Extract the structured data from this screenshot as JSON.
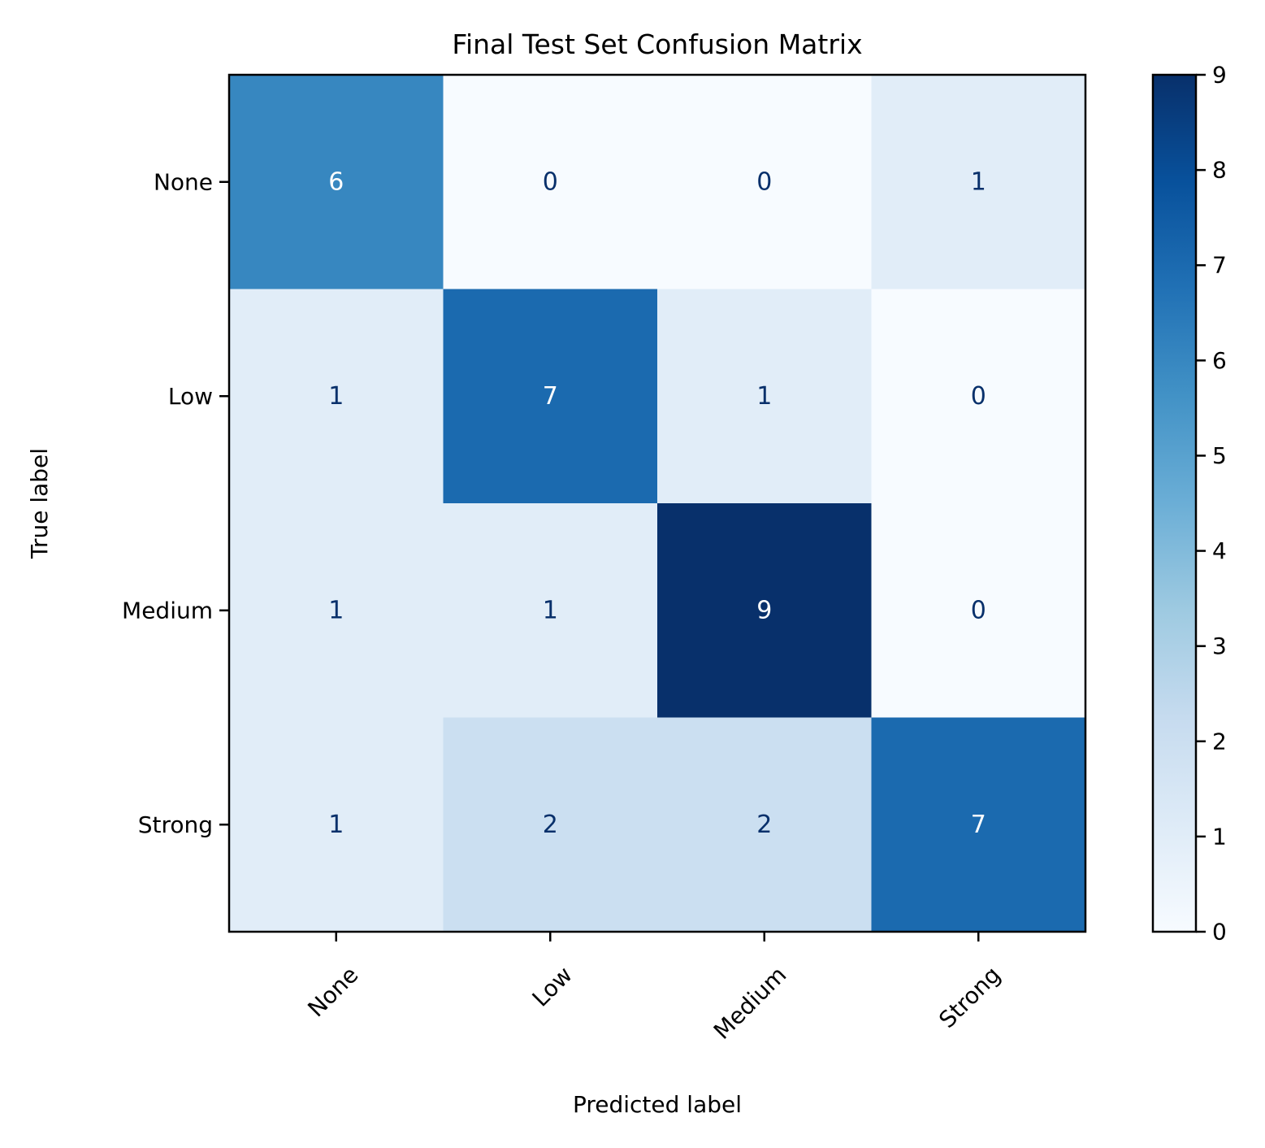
{
  "chart_data": {
    "type": "heatmap",
    "title": "Final Test Set Confusion Matrix",
    "xlabel": "Predicted label",
    "ylabel": "True label",
    "x_categories": [
      "None",
      "Low",
      "Medium",
      "Strong"
    ],
    "y_categories": [
      "None",
      "Low",
      "Medium",
      "Strong"
    ],
    "values": [
      [
        6,
        0,
        0,
        1
      ],
      [
        1,
        7,
        1,
        0
      ],
      [
        1,
        1,
        9,
        0
      ],
      [
        1,
        2,
        2,
        7
      ]
    ],
    "colormap": "Blues",
    "colorbar": {
      "range": [
        0,
        9
      ],
      "ticks": [
        "0",
        "1",
        "2",
        "3",
        "4",
        "5",
        "6",
        "7",
        "8",
        "9"
      ]
    },
    "x_tick_rotation_deg": 45,
    "grid": false
  }
}
